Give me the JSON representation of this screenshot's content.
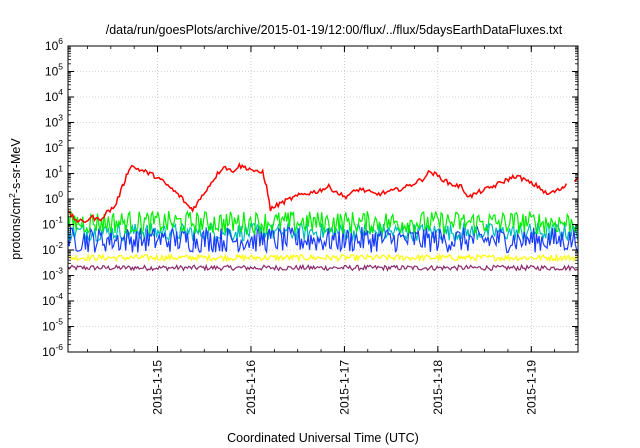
{
  "chart_data": {
    "type": "line",
    "title": "/data/run/goesPlots/archive/2015-01-19/12:00/flux/../flux/5daysEarthDataFluxes.txt",
    "xlabel": "Coordinated Universal Time (UTC)",
    "ylabel_parts": [
      "protons/cm",
      "2",
      "-s-sr-MeV"
    ],
    "y_scale": "log",
    "ylim": [
      1e-06,
      1000000.0
    ],
    "xlim": [
      "2015-01-14 01:00",
      "2015-01-19 12:00"
    ],
    "y_ticks": [
      {
        "value": 1000000.0,
        "base": "10",
        "exp": "6"
      },
      {
        "value": 100000.0,
        "base": "10",
        "exp": "5"
      },
      {
        "value": 10000.0,
        "base": "10",
        "exp": "4"
      },
      {
        "value": 1000.0,
        "base": "10",
        "exp": "3"
      },
      {
        "value": 100.0,
        "base": "10",
        "exp": "2"
      },
      {
        "value": 10.0,
        "base": "10",
        "exp": "1"
      },
      {
        "value": 1.0,
        "base": "10",
        "exp": "0"
      },
      {
        "value": 0.1,
        "base": "10",
        "exp": "-1"
      },
      {
        "value": 0.01,
        "base": "10",
        "exp": "-2"
      },
      {
        "value": 0.001,
        "base": "10",
        "exp": "-3"
      },
      {
        "value": 0.0001,
        "base": "10",
        "exp": "-4"
      },
      {
        "value": 1e-05,
        "base": "10",
        "exp": "-5"
      },
      {
        "value": 1e-06,
        "base": "10",
        "exp": "-6"
      }
    ],
    "x_ticks": [
      {
        "value": "2015-01-15 00:00",
        "label": "2015-1-15"
      },
      {
        "value": "2015-01-16 00:00",
        "label": "2015-1-16"
      },
      {
        "value": "2015-01-17 00:00",
        "label": "2015-1-17"
      },
      {
        "value": "2015-01-18 00:00",
        "label": "2015-1-18"
      },
      {
        "value": "2015-01-19 00:00",
        "label": "2015-1-19"
      }
    ],
    "grid": true,
    "legend": "none",
    "series": [
      {
        "color": "#ff0000",
        "points": [
          [
            "2015-01-14 01:00",
            0.3
          ],
          [
            "2015-01-14 03:00",
            0.15
          ],
          [
            "2015-01-14 05:00",
            0.12
          ],
          [
            "2015-01-14 07:00",
            0.2
          ],
          [
            "2015-01-14 09:00",
            0.15
          ],
          [
            "2015-01-14 11:00",
            0.3
          ],
          [
            "2015-01-14 13:00",
            0.5
          ],
          [
            "2015-01-14 15:00",
            3
          ],
          [
            "2015-01-14 16:00",
            8
          ],
          [
            "2015-01-14 17:00",
            20
          ],
          [
            "2015-01-14 19:00",
            15
          ],
          [
            "2015-01-14 22:00",
            10
          ],
          [
            "2015-01-15 00:00",
            7
          ],
          [
            "2015-01-15 03:00",
            3
          ],
          [
            "2015-01-15 06:00",
            1.2
          ],
          [
            "2015-01-15 08:00",
            0.5
          ],
          [
            "2015-01-15 09:00",
            0.4
          ],
          [
            "2015-01-15 11:00",
            1
          ],
          [
            "2015-01-15 13:00",
            3
          ],
          [
            "2015-01-15 15:00",
            8
          ],
          [
            "2015-01-15 17:00",
            20
          ],
          [
            "2015-01-15 19:00",
            12
          ],
          [
            "2015-01-15 21:00",
            20
          ],
          [
            "2015-01-16 00:00",
            15
          ],
          [
            "2015-01-16 02:00",
            10
          ],
          [
            "2015-01-16 03:00",
            12
          ],
          [
            "2015-01-16 04:00",
            3
          ],
          [
            "2015-01-16 05:00",
            0.4
          ],
          [
            "2015-01-16 07:00",
            0.6
          ],
          [
            "2015-01-16 10:00",
            1
          ],
          [
            "2015-01-16 13:00",
            1.5
          ],
          [
            "2015-01-16 17:00",
            2
          ],
          [
            "2015-01-16 20:00",
            3
          ],
          [
            "2015-01-17 00:00",
            1.2
          ],
          [
            "2015-01-17 04:00",
            2.5
          ],
          [
            "2015-01-17 08:00",
            1.5
          ],
          [
            "2015-01-17 12:00",
            2
          ],
          [
            "2015-01-17 16:00",
            3
          ],
          [
            "2015-01-17 20:00",
            6
          ],
          [
            "2015-01-17 22:00",
            12
          ],
          [
            "2015-01-18 00:00",
            8
          ],
          [
            "2015-01-18 03:00",
            4
          ],
          [
            "2015-01-18 06:00",
            3
          ],
          [
            "2015-01-18 08:00",
            1.2
          ],
          [
            "2015-01-18 11:00",
            2
          ],
          [
            "2015-01-18 14:00",
            3
          ],
          [
            "2015-01-18 17:00",
            5
          ],
          [
            "2015-01-18 20:00",
            8
          ],
          [
            "2015-01-18 22:00",
            6
          ],
          [
            "2015-01-19 00:00",
            4
          ],
          [
            "2015-01-19 02:00",
            3
          ],
          [
            "2015-01-19 04:00",
            1.5
          ],
          [
            "2015-01-19 06:00",
            2
          ],
          [
            "2015-01-19 08:00",
            2.5
          ],
          [
            "2015-01-19 09:00",
            4
          ]
        ],
        "tail": [
          [
            "2015-01-19 11:00",
            5
          ],
          [
            "2015-01-19 12:00",
            7
          ]
        ]
      },
      {
        "color": "#00ee00",
        "level": 0.12,
        "noise_decades": 0.45
      },
      {
        "color": "#00bbbb",
        "level": 0.05,
        "noise_decades": 0.35
      },
      {
        "color": "#1a3cff",
        "level": 0.025,
        "noise_decades": 0.5
      },
      {
        "color": "#ffff00",
        "level": 0.005,
        "noise_decades": 0.12
      },
      {
        "color": "#8b2a6b",
        "level": 0.002,
        "noise_decades": 0.1
      }
    ]
  }
}
